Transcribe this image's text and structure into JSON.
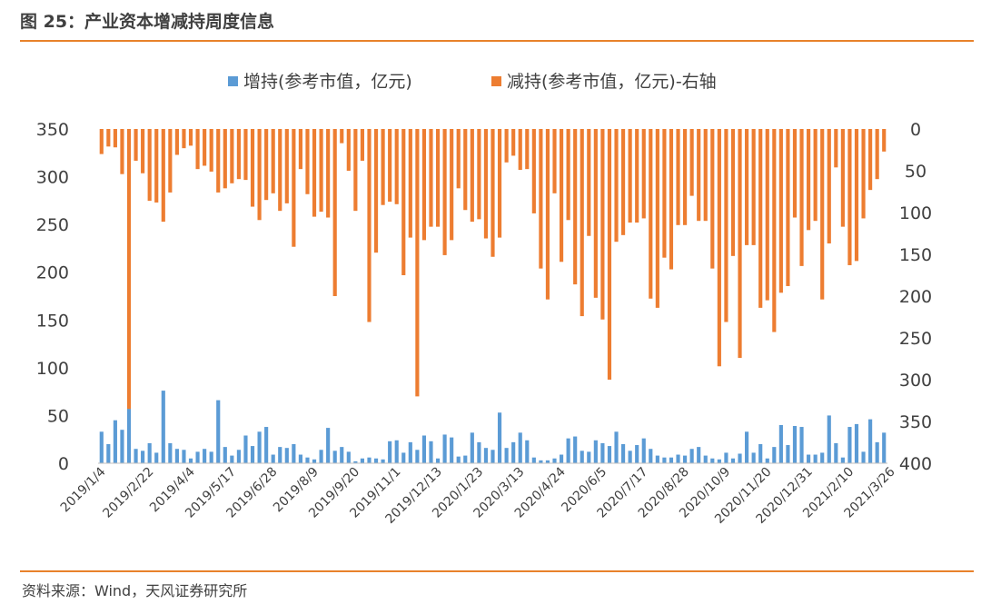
{
  "figure": {
    "title": "图 25：产业资本增减持周度信息",
    "source": "资料来源：Wind，天风证券研究所"
  },
  "colors": {
    "increase": "#5b9bd5",
    "decrease": "#ed7d31",
    "accent_rule": "#e8822b"
  },
  "chart_data": {
    "type": "bar",
    "legend_position": "top",
    "grid": false,
    "x_tick_labels": [
      "2019/1/4",
      "2019/2/22",
      "2019/4/4",
      "2019/5/17",
      "2019/6/28",
      "2019/8/9",
      "2019/9/20",
      "2019/11/1",
      "2019/12/13",
      "2020/1/23",
      "2020/3/13",
      "2020/4/24",
      "2020/6/5",
      "2020/7/17",
      "2020/8/28",
      "2020/10/9",
      "2020/11/20",
      "2020/12/31",
      "2021/2/10",
      "2021/3/26"
    ],
    "x_tick_index": [
      0,
      7,
      13,
      19,
      25,
      31,
      37,
      43,
      49,
      55,
      61,
      67,
      73,
      79,
      85,
      91,
      97,
      103,
      109,
      115
    ],
    "left_axis": {
      "ylim": [
        0,
        350
      ],
      "ticks": [
        0,
        50,
        100,
        150,
        200,
        250,
        300,
        350
      ]
    },
    "right_axis": {
      "ylim": [
        0,
        400
      ],
      "inverted": true,
      "ticks": [
        0,
        50,
        100,
        150,
        200,
        250,
        300,
        350,
        400
      ]
    },
    "series": [
      {
        "name": "增持(参考市值，亿元)",
        "axis": "left",
        "values": [
          33,
          20,
          45,
          35,
          57,
          15,
          13,
          21,
          11,
          76,
          21,
          15,
          14,
          5,
          12,
          15,
          12,
          66,
          17,
          8,
          14,
          29,
          18,
          33,
          38,
          9,
          17,
          16,
          20,
          9,
          6,
          4,
          14,
          37,
          13,
          17,
          12,
          2,
          5,
          6,
          5,
          4,
          23,
          24,
          11,
          22,
          14,
          29,
          23,
          5,
          30,
          27,
          7,
          8,
          32,
          22,
          16,
          14,
          53,
          16,
          22,
          32,
          24,
          6,
          3,
          3,
          5,
          9,
          26,
          28,
          13,
          12,
          24,
          21,
          18,
          33,
          20,
          13,
          19,
          26,
          15,
          8,
          6,
          6,
          9,
          8,
          15,
          17,
          8,
          5,
          4,
          11,
          5,
          10,
          33,
          11,
          20,
          5,
          17,
          40,
          19,
          39,
          38,
          9,
          9,
          11,
          50,
          21,
          6,
          38,
          41,
          12,
          46,
          22,
          32
        ]
      },
      {
        "name": "减持(参考市值，亿元)-右轴",
        "axis": "right",
        "values": [
          30,
          21,
          22,
          54,
          335,
          38,
          53,
          86,
          88,
          111,
          76,
          31,
          23,
          20,
          48,
          44,
          51,
          76,
          71,
          65,
          60,
          61,
          93,
          109,
          85,
          77,
          98,
          89,
          141,
          48,
          78,
          105,
          99,
          106,
          200,
          17,
          50,
          98,
          38,
          231,
          148,
          91,
          87,
          90,
          175,
          130,
          320,
          133,
          117,
          117,
          151,
          133,
          71,
          97,
          111,
          108,
          131,
          153,
          130,
          40,
          32,
          49,
          48,
          101,
          167,
          204,
          77,
          159,
          109,
          186,
          224,
          128,
          202,
          228,
          300,
          135,
          127,
          112,
          112,
          107,
          203,
          214,
          154,
          168,
          115,
          115,
          80,
          110,
          110,
          167,
          284,
          231,
          152,
          274,
          139,
          139,
          214,
          205,
          243,
          196,
          188,
          106,
          164,
          121,
          110,
          204,
          137,
          46,
          117,
          163,
          158,
          107,
          73,
          60,
          27
        ]
      }
    ]
  }
}
